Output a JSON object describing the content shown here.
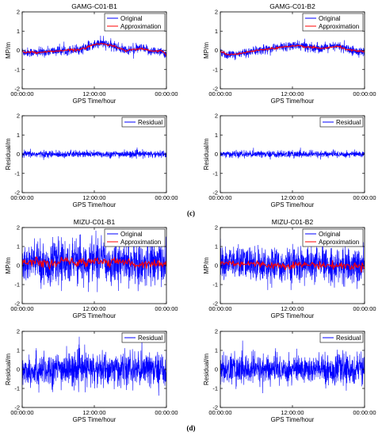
{
  "colors": {
    "original": "#0000ff",
    "approximation": "#ff0000",
    "residual": "#0000ff",
    "axis": "#000000"
  },
  "captions": [
    "(c)",
    "(d)"
  ],
  "chart_data": [
    {
      "id": "gamg-b1-mp",
      "type": "line",
      "title": "GAMG-C01-B1",
      "xlabel": "GPS Time/hour",
      "ylabel": "MP/m",
      "ylim": [
        -2,
        2
      ],
      "yticks": [
        "2",
        "1",
        "0",
        "-1",
        "-2"
      ],
      "xticks": [
        "00:00:00",
        "12:00:00",
        "00:00:00"
      ],
      "legend": "top-right",
      "noise": 0.12,
      "series": [
        {
          "name": "Original",
          "trend": [
            [
              0,
              -0.08
            ],
            [
              0.1,
              -0.12
            ],
            [
              0.25,
              -0.02
            ],
            [
              0.4,
              0.05
            ],
            [
              0.5,
              0.3
            ],
            [
              0.55,
              0.38
            ],
            [
              0.62,
              0.25
            ],
            [
              0.72,
              0.0
            ],
            [
              0.82,
              0.1
            ],
            [
              0.9,
              -0.05
            ],
            [
              0.97,
              -0.02
            ],
            [
              1,
              -0.35
            ]
          ]
        },
        {
          "name": "Approximation",
          "trend": [
            [
              0,
              -0.08
            ],
            [
              0.1,
              -0.12
            ],
            [
              0.25,
              -0.02
            ],
            [
              0.4,
              0.05
            ],
            [
              0.5,
              0.3
            ],
            [
              0.55,
              0.36
            ],
            [
              0.62,
              0.25
            ],
            [
              0.72,
              0.0
            ],
            [
              0.82,
              0.1
            ],
            [
              0.9,
              -0.05
            ],
            [
              0.97,
              -0.02
            ],
            [
              1,
              -0.3
            ]
          ]
        }
      ]
    },
    {
      "id": "gamg-b2-mp",
      "type": "line",
      "title": "GAMG-C01-B2",
      "xlabel": "GPS Time/hour",
      "ylabel": "MP/m",
      "ylim": [
        -2,
        2
      ],
      "yticks": [
        "2",
        "1",
        "0",
        "-1",
        "-2"
      ],
      "xticks": [
        "00:00:00",
        "12:00:00",
        "00:00:00"
      ],
      "legend": "top-right",
      "noise": 0.12,
      "series": [
        {
          "name": "Original",
          "trend": [
            [
              0,
              -0.05
            ],
            [
              0.05,
              -0.25
            ],
            [
              0.12,
              -0.2
            ],
            [
              0.3,
              0.05
            ],
            [
              0.45,
              0.2
            ],
            [
              0.55,
              0.25
            ],
            [
              0.7,
              0.1
            ],
            [
              0.82,
              0.22
            ],
            [
              0.9,
              0.0
            ],
            [
              1,
              -0.1
            ]
          ]
        },
        {
          "name": "Approximation",
          "trend": [
            [
              0,
              -0.05
            ],
            [
              0.05,
              -0.22
            ],
            [
              0.12,
              -0.18
            ],
            [
              0.3,
              0.05
            ],
            [
              0.45,
              0.18
            ],
            [
              0.55,
              0.22
            ],
            [
              0.7,
              0.1
            ],
            [
              0.82,
              0.2
            ],
            [
              0.9,
              0.0
            ],
            [
              1,
              -0.08
            ]
          ]
        }
      ]
    },
    {
      "id": "gamg-b1-res",
      "type": "line",
      "title": "",
      "xlabel": "GPS Time/hour",
      "ylabel": "Residual/m",
      "ylim": [
        -2,
        2
      ],
      "yticks": [
        "2",
        "1",
        "0",
        "-1",
        "-2"
      ],
      "xticks": [
        "00:00:00",
        "12:00:00",
        "00:00:00"
      ],
      "legend": "top-right",
      "noise": 0.09,
      "series": [
        {
          "name": "Residual",
          "trend": [
            [
              0,
              0
            ],
            [
              1,
              0
            ]
          ]
        }
      ]
    },
    {
      "id": "gamg-b2-res",
      "type": "line",
      "title": "",
      "xlabel": "GPS Time/hour",
      "ylabel": "Residual/m",
      "ylim": [
        -2,
        2
      ],
      "yticks": [
        "2",
        "1",
        "0",
        "-1",
        "-2"
      ],
      "xticks": [
        "00:00:00",
        "12:00:00",
        "00:00:00"
      ],
      "legend": "top-right",
      "noise": 0.09,
      "series": [
        {
          "name": "Residual",
          "trend": [
            [
              0,
              0
            ],
            [
              1,
              0
            ]
          ]
        }
      ]
    },
    {
      "id": "mizu-b1-mp",
      "type": "line",
      "title": "MIZU-C01-B1",
      "xlabel": "GPS Time/hour",
      "ylabel": "MP/m",
      "ylim": [
        -2,
        2
      ],
      "yticks": [
        "2",
        "1",
        "0",
        "-1",
        "-2"
      ],
      "xticks": [
        "00:00:00",
        "12:00:00",
        "00:00:00"
      ],
      "legend": "top-right",
      "noise": 0.55,
      "series": [
        {
          "name": "Original",
          "trend": [
            [
              0,
              0.1
            ],
            [
              0.1,
              0.2
            ],
            [
              0.2,
              0.05
            ],
            [
              0.3,
              0.25
            ],
            [
              0.4,
              0.1
            ],
            [
              0.5,
              0.3
            ],
            [
              0.6,
              0.15
            ],
            [
              0.7,
              0.2
            ],
            [
              0.8,
              0.05
            ],
            [
              0.9,
              0.15
            ],
            [
              1,
              0.1
            ]
          ]
        },
        {
          "name": "Approximation",
          "trend": [
            [
              0,
              0.1
            ],
            [
              0.1,
              0.2
            ],
            [
              0.2,
              0.05
            ],
            [
              0.3,
              0.25
            ],
            [
              0.4,
              0.1
            ],
            [
              0.5,
              0.3
            ],
            [
              0.6,
              0.15
            ],
            [
              0.7,
              0.2
            ],
            [
              0.8,
              0.05
            ],
            [
              0.9,
              0.15
            ],
            [
              1,
              0.1
            ]
          ]
        }
      ]
    },
    {
      "id": "mizu-b2-mp",
      "type": "line",
      "title": "MIZU-C01-B2",
      "xlabel": "GPS Time/hour",
      "ylabel": "MP/m",
      "ylim": [
        -2,
        2
      ],
      "yticks": [
        "2",
        "1",
        "0",
        "-1",
        "-2"
      ],
      "xticks": [
        "00:00:00",
        "12:00:00",
        "00:00:00"
      ],
      "legend": "top-right",
      "noise": 0.45,
      "series": [
        {
          "name": "Original",
          "trend": [
            [
              0,
              0.15
            ],
            [
              0.2,
              0.1
            ],
            [
              0.4,
              0.0
            ],
            [
              0.6,
              0.05
            ],
            [
              0.8,
              0.0
            ],
            [
              1,
              -0.05
            ]
          ]
        },
        {
          "name": "Approximation",
          "trend": [
            [
              0,
              0.15
            ],
            [
              0.2,
              0.1
            ],
            [
              0.4,
              0.0
            ],
            [
              0.6,
              0.05
            ],
            [
              0.8,
              0.0
            ],
            [
              1,
              -0.05
            ]
          ]
        }
      ]
    },
    {
      "id": "mizu-b1-res",
      "type": "line",
      "title": "",
      "xlabel": "GPS Time/hour",
      "ylabel": "Residual/m",
      "ylim": [
        -2,
        2
      ],
      "yticks": [
        "2",
        "1",
        "0",
        "-1",
        "-2"
      ],
      "xticks": [
        "00:00:00",
        "12:00:00",
        "00:00:00"
      ],
      "legend": "top-right",
      "noise": 0.45,
      "series": [
        {
          "name": "Residual",
          "trend": [
            [
              0,
              0
            ],
            [
              1,
              0
            ]
          ]
        }
      ]
    },
    {
      "id": "mizu-b2-res",
      "type": "line",
      "title": "",
      "xlabel": "GPS Time/hour",
      "ylabel": "Residual/m",
      "ylim": [
        -2,
        2
      ],
      "yticks": [
        "2",
        "1",
        "0",
        "-1",
        "-2"
      ],
      "xticks": [
        "00:00:00",
        "12:00:00",
        "00:00:00"
      ],
      "legend": "top-right",
      "noise": 0.4,
      "series": [
        {
          "name": "Residual",
          "trend": [
            [
              0,
              0
            ],
            [
              1,
              0
            ]
          ]
        }
      ]
    }
  ]
}
